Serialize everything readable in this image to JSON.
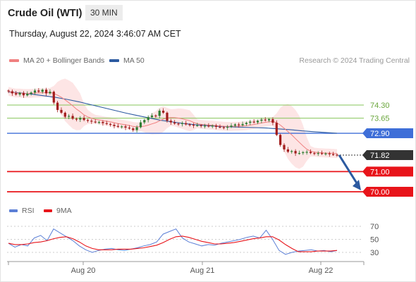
{
  "header": {
    "instrument": "Crude Oil (WTI)",
    "timeframe": "30 MIN",
    "datetime": "Thursday, August 22, 2024 3:46:07 AM CET"
  },
  "legend": {
    "ma20_label": "MA 20 + Bollinger Bands",
    "ma50_label": "MA 50",
    "rsi_label": "RSI",
    "rsi9_label": "9MA",
    "copyright": "Research © 2024 Trading Central"
  },
  "colors": {
    "ma20": "#f08080",
    "ma50": "#2c5aa0",
    "bollinger_fill": "#fde1e1",
    "pivot_blue": "#3f6fd8",
    "support_red": "#e8141a",
    "resistance_green": "#86c55a",
    "current_price": "#333333",
    "candle_up": "#2e7d32",
    "candle_down": "#a11c1c",
    "rsi_line": "#5b7fd6",
    "rsi9_line": "#e8141a",
    "arrow": "#2c5aa0"
  },
  "chart_data": [
    {
      "type": "candlestick",
      "title": "Crude Oil (WTI)",
      "timeframe": "30 MIN",
      "x_tick_labels": [
        "Aug 20",
        "Aug 21",
        "Aug 22"
      ],
      "ylim": [
        69.7,
        75.2
      ],
      "overlays": [
        "MA 20 + Bollinger Bands",
        "MA 50"
      ],
      "price_series_close": [
        74.98,
        74.88,
        74.82,
        74.9,
        74.78,
        74.86,
        74.92,
        75.02,
        74.96,
        75.06,
        74.88,
        74.96,
        74.42,
        74.06,
        73.92,
        73.72,
        73.76,
        73.62,
        73.58,
        73.66,
        73.56,
        73.52,
        73.48,
        73.44,
        73.46,
        73.4,
        73.36,
        73.32,
        73.26,
        73.22,
        73.24,
        73.18,
        73.14,
        73.06,
        73.2,
        73.44,
        73.56,
        73.7,
        73.78,
        73.76,
        74.02,
        73.92,
        73.52,
        73.44,
        73.38,
        73.36,
        73.4,
        73.34,
        73.32,
        73.28,
        73.3,
        73.26,
        73.28,
        73.24,
        73.28,
        73.22,
        73.2,
        73.18,
        73.22,
        73.28,
        73.34,
        73.3,
        73.36,
        73.42,
        73.48,
        73.44,
        73.52,
        73.58,
        73.54,
        73.6,
        73.42,
        72.82,
        72.32,
        72.1,
        71.98,
        72.02,
        71.9,
        71.92,
        71.96,
        71.98,
        71.92,
        71.9,
        71.92,
        71.88,
        71.9,
        71.86,
        71.84,
        71.82
      ],
      "ma50_series": [
        74.95,
        74.9,
        74.84,
        74.76,
        74.68,
        74.58,
        74.46,
        74.32,
        74.18,
        74.04,
        73.9,
        73.78,
        73.66,
        73.54,
        73.46,
        73.38,
        73.32,
        73.28,
        73.24,
        73.22,
        73.2,
        73.18,
        73.16,
        73.12,
        73.08,
        73.02,
        72.98,
        72.94,
        72.9
      ],
      "levels": [
        {
          "value": 74.3,
          "label": "74.30",
          "kind": "resistance"
        },
        {
          "value": 73.65,
          "label": "73.65",
          "kind": "resistance"
        },
        {
          "value": 72.9,
          "label": "72.90",
          "kind": "pivot"
        },
        {
          "value": 71.82,
          "label": "71.82",
          "kind": "current"
        },
        {
          "value": 71.0,
          "label": "71.00",
          "kind": "support"
        },
        {
          "value": 70.0,
          "label": "70.00",
          "kind": "support"
        }
      ],
      "forecast_arrow": {
        "from": 71.82,
        "to": 70.0
      }
    },
    {
      "type": "line",
      "title": "RSI",
      "series": [
        {
          "name": "RSI",
          "values": [
            44,
            38,
            42,
            40,
            52,
            56,
            48,
            66,
            60,
            54,
            48,
            40,
            34,
            30,
            33,
            35,
            36,
            34,
            33,
            35,
            37,
            40,
            42,
            46,
            58,
            62,
            66,
            52,
            46,
            43,
            40,
            42,
            41,
            44,
            46,
            48,
            50,
            53,
            55,
            52,
            64,
            50,
            33,
            27,
            30,
            32,
            33,
            34,
            32,
            33,
            31,
            33
          ]
        },
        {
          "name": "9MA",
          "values": [
            44,
            42,
            42,
            43,
            45,
            46,
            48,
            51,
            53,
            54,
            51,
            46,
            40,
            36,
            34,
            34,
            34,
            35,
            35,
            35,
            36,
            37,
            39,
            41,
            45,
            50,
            54,
            55,
            53,
            50,
            47,
            45,
            43,
            43,
            44,
            45,
            47,
            49,
            51,
            52,
            54,
            54,
            49,
            42,
            36,
            31,
            31,
            31,
            32,
            32,
            32,
            33
          ]
        }
      ],
      "ylim": [
        22,
        78
      ],
      "y_ticks": [
        30,
        50,
        70
      ]
    }
  ]
}
